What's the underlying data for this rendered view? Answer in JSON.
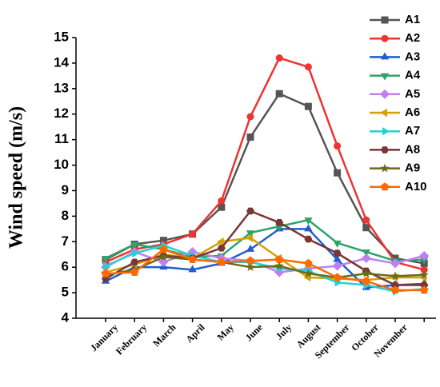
{
  "chart_data": {
    "type": "line",
    "y_label": "Wind speed (m/s)",
    "categories": [
      "January",
      "February",
      "March",
      "April",
      "May",
      "June",
      "July",
      "August",
      "September",
      "October",
      "November",
      null
    ],
    "ylim": [
      4,
      15
    ],
    "yticks": [
      4,
      5,
      6,
      7,
      8,
      9,
      10,
      11,
      12,
      13,
      14,
      15
    ],
    "legend": "upper right",
    "series": [
      {
        "name": "A1",
        "color": "#555555",
        "marker": "square",
        "values": [
          6.3,
          6.9,
          7.05,
          7.3,
          8.35,
          11.1,
          12.8,
          12.3,
          9.7,
          7.55,
          6.35,
          6.15
        ]
      },
      {
        "name": "A2",
        "color": "#ee3333",
        "marker": "circle",
        "values": [
          6.2,
          6.7,
          6.9,
          7.3,
          8.6,
          11.9,
          14.2,
          13.85,
          10.75,
          7.85,
          6.2,
          5.9
        ]
      },
      {
        "name": "A3",
        "color": "#1f5fd1",
        "marker": "triangle-up",
        "values": [
          5.45,
          6.0,
          6.0,
          5.9,
          6.15,
          6.7,
          7.5,
          7.5,
          6.3,
          5.2,
          5.3,
          5.35
        ]
      },
      {
        "name": "A4",
        "color": "#2ea36a",
        "marker": "triangle-down",
        "values": [
          6.35,
          6.9,
          6.7,
          6.4,
          6.45,
          7.35,
          7.6,
          7.85,
          6.95,
          6.6,
          6.25,
          6.3
        ]
      },
      {
        "name": "A5",
        "color": "#c080f0",
        "marker": "diamond",
        "values": [
          6.0,
          6.6,
          6.2,
          6.6,
          6.35,
          6.25,
          5.8,
          5.95,
          6.05,
          6.35,
          6.15,
          6.45
        ]
      },
      {
        "name": "A6",
        "color": "#d4a000",
        "marker": "triangle-left",
        "values": [
          5.8,
          6.1,
          6.5,
          6.35,
          7.0,
          7.15,
          6.35,
          5.6,
          5.55,
          5.5,
          5.6,
          5.6
        ]
      },
      {
        "name": "A7",
        "color": "#22d2d2",
        "marker": "triangle-right",
        "values": [
          6.05,
          6.55,
          6.85,
          6.45,
          6.2,
          6.2,
          5.95,
          5.85,
          5.4,
          5.3,
          5.05,
          5.15
        ]
      },
      {
        "name": "A8",
        "color": "#7a3535",
        "marker": "hexagon",
        "values": [
          5.55,
          6.2,
          6.45,
          6.35,
          6.75,
          8.2,
          7.75,
          7.1,
          6.55,
          5.85,
          5.3,
          5.3
        ]
      },
      {
        "name": "A9",
        "color": "#6b6b1a",
        "marker": "star",
        "values": [
          5.7,
          5.9,
          6.4,
          6.3,
          6.2,
          6.0,
          6.05,
          5.75,
          5.6,
          5.75,
          5.65,
          5.7
        ]
      },
      {
        "name": "A10",
        "color": "#ff6a00",
        "marker": "pentagon",
        "values": [
          5.75,
          5.8,
          6.7,
          6.3,
          6.2,
          6.25,
          6.3,
          6.15,
          5.6,
          5.45,
          5.1,
          5.1
        ]
      }
    ]
  }
}
